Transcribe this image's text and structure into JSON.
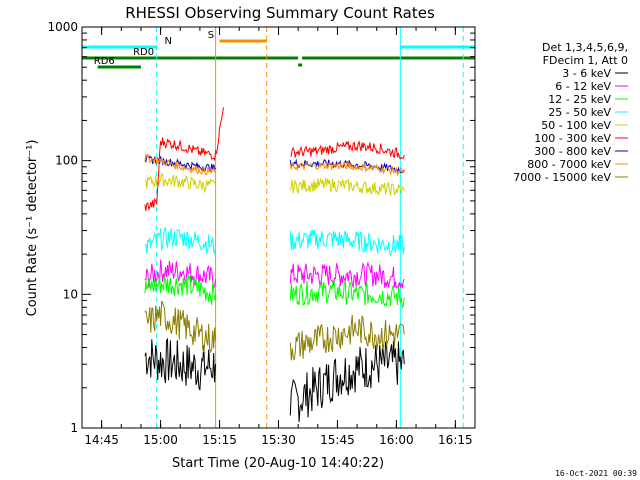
{
  "chart_data": {
    "type": "line",
    "title": "RHESSI Observing Summary Count Rates",
    "xlabel": "Start Time (20-Aug-10 14:40:22)",
    "ylabel": "Count Rate (s⁻¹ detector⁻¹)",
    "yscale": "log",
    "ylim": [
      1,
      1000
    ],
    "xlim": [
      "14:40",
      "16:20"
    ],
    "x_ticks": [
      "14:45",
      "15:00",
      "15:15",
      "15:30",
      "15:45",
      "16:00",
      "16:15"
    ],
    "y_ticks": [
      "1",
      "10",
      "100",
      "1000"
    ],
    "grid": false,
    "legend_position": "right",
    "legend_header": [
      "Det 1,3,4,5,6,9,",
      "FDecim 1, Att 0"
    ],
    "series": [
      {
        "name": "3 - 6 keV",
        "color": "#000000",
        "segments": [
          {
            "x": [
              "14:56",
              "15:00",
              "15:05",
              "15:10",
              "15:14"
            ],
            "y": [
              3.5,
              3.2,
              3.0,
              2.8,
              3.0
            ]
          },
          {
            "x": [
              "15:33",
              "15:40",
              "15:45",
              "15:50",
              "15:55",
              "16:02"
            ],
            "y": [
              1.5,
              2.0,
              2.5,
              2.8,
              3.0,
              3.0
            ]
          }
        ]
      },
      {
        "name": "6 - 12 keV",
        "color": "#ff00ff",
        "segments": [
          {
            "x": [
              "14:56",
              "15:00",
              "15:05",
              "15:10",
              "15:14"
            ],
            "y": [
              13,
              15,
              15,
              14,
              13
            ]
          },
          {
            "x": [
              "15:33",
              "15:40",
              "15:45",
              "15:50",
              "15:55",
              "16:02"
            ],
            "y": [
              14,
              14,
              14,
              14,
              14,
              13
            ]
          }
        ]
      },
      {
        "name": "12 - 25 keV",
        "color": "#00ff00",
        "segments": [
          {
            "x": [
              "14:56",
              "15:00",
              "15:05",
              "15:10",
              "15:14"
            ],
            "y": [
              11,
              12,
              12,
              11,
              10
            ]
          },
          {
            "x": [
              "15:33",
              "15:40",
              "15:45",
              "15:50",
              "15:55",
              "16:02"
            ],
            "y": [
              10,
              10.5,
              10.5,
              10,
              10,
              9.5
            ]
          }
        ]
      },
      {
        "name": "25 - 50 keV",
        "color": "#00ffff",
        "segments": [
          {
            "x": [
              "14:56",
              "15:00",
              "15:05",
              "15:10",
              "15:14"
            ],
            "y": [
              22,
              26,
              27,
              25,
              23
            ]
          },
          {
            "x": [
              "15:33",
              "15:40",
              "15:45",
              "15:50",
              "15:55",
              "16:02"
            ],
            "y": [
              25,
              26,
              26,
              25,
              24,
              23
            ]
          }
        ]
      },
      {
        "name": "50 - 100 keV",
        "color": "#d0d000",
        "segments": [
          {
            "x": [
              "14:56",
              "15:00",
              "15:05",
              "15:10",
              "15:14"
            ],
            "y": [
              68,
              72,
              70,
              66,
              65
            ]
          },
          {
            "x": [
              "15:33",
              "15:40",
              "15:45",
              "15:50",
              "15:55",
              "16:02"
            ],
            "y": [
              64,
              66,
              66,
              64,
              62,
              60
            ]
          }
        ]
      },
      {
        "name": "100 - 300 keV",
        "color": "#ff0000",
        "segments": [
          {
            "x": [
              "14:56",
              "14:59",
              "15:00",
              "15:05",
              "15:10",
              "15:14",
              "15:16"
            ],
            "y": [
              45,
              48,
              140,
              130,
              115,
              110,
              250
            ]
          },
          {
            "x": [
              "15:33",
              "15:40",
              "15:45",
              "15:50",
              "15:55",
              "16:02"
            ],
            "y": [
              115,
              118,
              125,
              130,
              125,
              110
            ]
          }
        ]
      },
      {
        "name": "300 - 800 keV",
        "color": "#0000cc",
        "segments": [
          {
            "x": [
              "14:56",
              "15:00",
              "15:05",
              "15:10",
              "15:14"
            ],
            "y": [
              102,
              100,
              95,
              90,
              88
            ]
          },
          {
            "x": [
              "15:33",
              "15:40",
              "15:45",
              "15:50",
              "15:55",
              "16:02"
            ],
            "y": [
              95,
              95,
              95,
              93,
              90,
              85
            ]
          }
        ]
      },
      {
        "name": "800 - 7000 keV",
        "color": "#ff8c00",
        "segments": [
          {
            "x": [
              "14:56",
              "15:00",
              "15:05",
              "15:10",
              "15:14"
            ],
            "y": [
              105,
              100,
              90,
              85,
              82
            ]
          },
          {
            "x": [
              "15:33",
              "15:40",
              "15:45",
              "15:50",
              "15:55",
              "16:02"
            ],
            "y": [
              90,
              92,
              92,
              90,
              88,
              82
            ]
          }
        ]
      },
      {
        "name": "7000 - 15000 keV",
        "color": "#8b7d00",
        "segments": [
          {
            "x": [
              "14:56",
              "15:00",
              "15:05",
              "15:10",
              "15:14"
            ],
            "y": [
              6,
              7,
              6,
              5,
              4.5
            ]
          },
          {
            "x": [
              "15:33",
              "15:40",
              "15:45",
              "15:50",
              "15:55",
              "16:02"
            ],
            "y": [
              4,
              4.5,
              5,
              5.5,
              5,
              5
            ]
          }
        ]
      }
    ],
    "vertical_lines": [
      {
        "x": "14:59",
        "color": "#00ffff",
        "style": "dashed"
      },
      {
        "x": "15:14",
        "color": "#ff8c00",
        "style": "solid"
      },
      {
        "x": "15:27",
        "color": "#ff8c00",
        "style": "dashed"
      },
      {
        "x": "16:01",
        "color": "#00ffff",
        "style": "solid"
      },
      {
        "x": "16:17",
        "color": "#00ffff",
        "style": "dashed"
      }
    ],
    "flag_bars": [
      {
        "x0": "14:40",
        "x1": "14:59",
        "color": "#00ffff",
        "label": "N",
        "label_x": "15:01"
      },
      {
        "x0": "16:01",
        "x1": "16:20",
        "color": "#00ffff",
        "label": "",
        "label_x": ""
      },
      {
        "x0": "15:15",
        "x1": "15:27",
        "color": "#ff8c00",
        "label": "S",
        "label_x": "15:12"
      },
      {
        "x0": "14:40",
        "x1": "15:09",
        "color": "#008000",
        "label": "RD0",
        "label_x": "14:53"
      },
      {
        "x0": "15:09",
        "x1": "15:35",
        "color": "#008000",
        "label": "",
        "label_x": ""
      },
      {
        "x0": "15:36",
        "x1": "16:20",
        "color": "#008000",
        "label": "",
        "label_x": ""
      },
      {
        "x0": "14:44",
        "x1": "14:55",
        "color": "#008000",
        "label": "RD6",
        "label_x": "14:43"
      },
      {
        "x0": "15:35",
        "x1": "15:36",
        "color": "#008000",
        "label": "",
        "label_x": ""
      }
    ]
  },
  "footer_timestamp": "16-Oct-2021 00:39"
}
